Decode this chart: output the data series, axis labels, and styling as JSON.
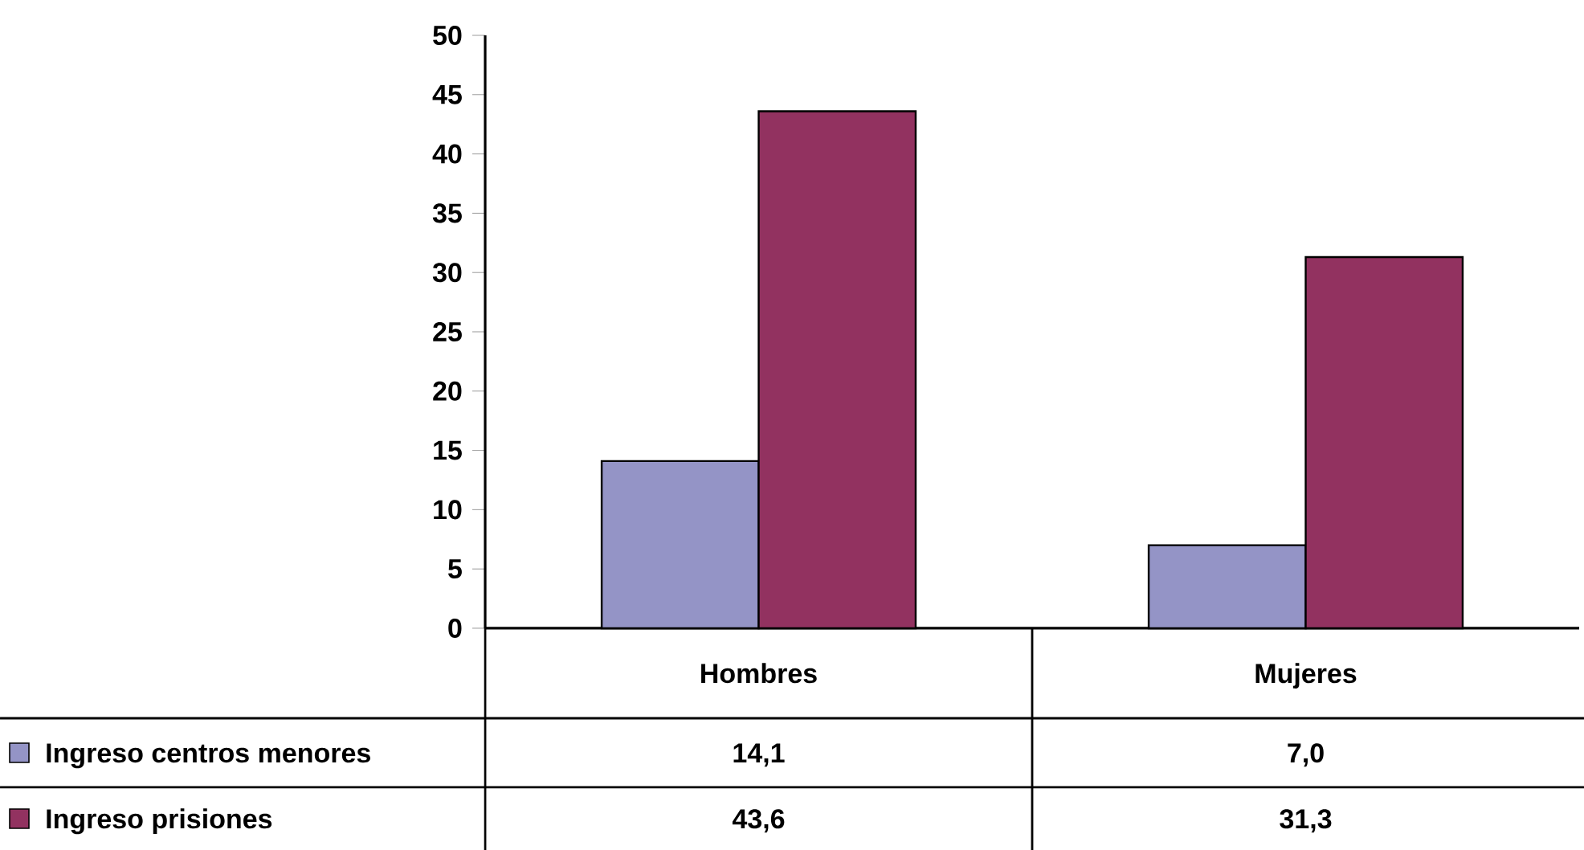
{
  "chart_data": {
    "type": "bar",
    "categories": [
      "Hombres",
      "Mujeres"
    ],
    "series": [
      {
        "name": "Ingreso centros menores",
        "color": "#9494c6",
        "values": [
          14.1,
          7.0
        ],
        "value_labels": [
          "14,1",
          "7,0"
        ]
      },
      {
        "name": "Ingreso prisiones",
        "color": "#923260",
        "values": [
          43.6,
          31.3
        ],
        "value_labels": [
          "43,6",
          "31,3"
        ]
      }
    ],
    "legend": "bottom left",
    "ylim": [
      0,
      50
    ],
    "yticks": [
      0,
      5,
      10,
      15,
      20,
      25,
      30,
      35,
      40,
      45,
      50
    ]
  }
}
